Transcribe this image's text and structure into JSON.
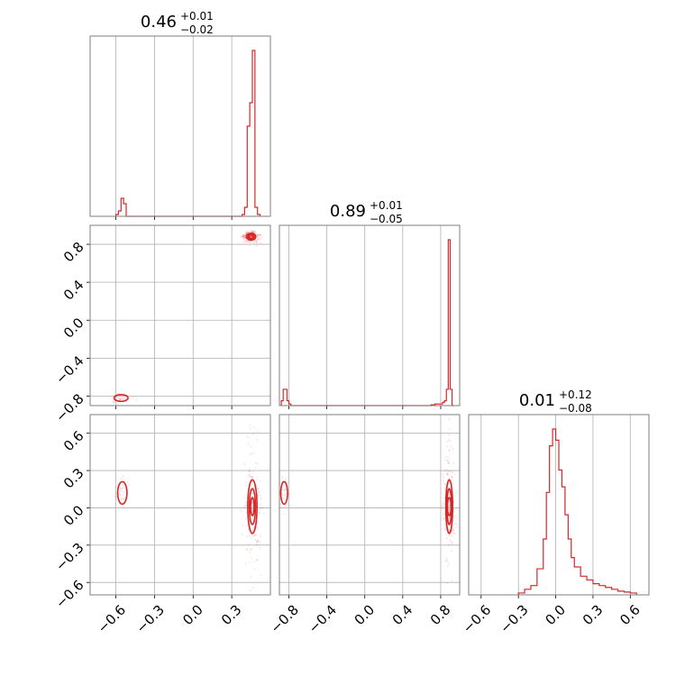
{
  "chart_data": {
    "type": "corner",
    "color": "#d62728",
    "grid": true,
    "parameters": [
      {
        "title": {
          "median": "0.46",
          "plus": "+0.01",
          "minus": "−0.02"
        },
        "range": [
          -0.8,
          0.6
        ],
        "ticks": [
          -0.6,
          -0.3,
          0.0,
          0.3
        ]
      },
      {
        "title": {
          "median": "0.89",
          "plus": "+0.01",
          "minus": "−0.05"
        },
        "range": [
          -0.9,
          1.0
        ],
        "ticks": [
          -0.8,
          -0.4,
          0.0,
          0.4,
          0.8
        ]
      },
      {
        "title": {
          "median": "0.01",
          "plus": "+0.12",
          "minus": "−0.08"
        },
        "range": [
          -0.7,
          0.75
        ],
        "ticks": [
          -0.6,
          -0.3,
          0.0,
          0.3,
          0.6
        ]
      }
    ],
    "tick_labels": {
      "p0": [
        "−0.6",
        "−0.3",
        "0.0",
        "0.3"
      ],
      "p1": [
        "−0.8",
        "−0.4",
        "0.0",
        "0.4",
        "0.8"
      ],
      "p2": [
        "−0.6",
        "−0.3",
        "0.0",
        "0.3",
        "0.6"
      ]
    },
    "histograms": [
      {
        "param": 0,
        "bins": [
          -0.6,
          -0.58,
          -0.56,
          -0.54,
          -0.52,
          0.38,
          0.4,
          0.42,
          0.44,
          0.46,
          0.48,
          0.5
        ],
        "counts": [
          1,
          3,
          10,
          7,
          0,
          1,
          5,
          50,
          63,
          92,
          5,
          1
        ]
      },
      {
        "param": 1,
        "bins": [
          -0.88,
          -0.86,
          -0.84,
          -0.82,
          -0.8,
          -0.78,
          0.7,
          0.72,
          0.74,
          0.76,
          0.78,
          0.8,
          0.82,
          0.84,
          0.86,
          0.88,
          0.9,
          0.92
        ],
        "counts": [
          3,
          10,
          10,
          3,
          1,
          0,
          0.5,
          0.5,
          1,
          1,
          1,
          1,
          2,
          3,
          10,
          102,
          10,
          0
        ]
      },
      {
        "param": 2,
        "bins": [
          -0.3,
          -0.25,
          -0.2,
          -0.15,
          -0.1,
          -0.075,
          -0.05,
          -0.025,
          0.0,
          0.025,
          0.05,
          0.075,
          0.1,
          0.125,
          0.15,
          0.2,
          0.25,
          0.3,
          0.35,
          0.4,
          0.45,
          0.5,
          0.55,
          0.6,
          0.65
        ],
        "counts": [
          1,
          3,
          5,
          14,
          30,
          55,
          80,
          89,
          83,
          67,
          58,
          43,
          30,
          20,
          15,
          10,
          8,
          6,
          5,
          4,
          3,
          2,
          1.5,
          1
        ]
      }
    ],
    "pairs": [
      {
        "x": 0,
        "y": 1,
        "modes": [
          {
            "cx": 0.45,
            "cy": 0.88,
            "sx": 0.02,
            "sy": 0.02,
            "weight": 0.88
          },
          {
            "cx": -0.56,
            "cy": -0.82,
            "sx": 0.03,
            "sy": 0.02,
            "weight": 0.12
          }
        ]
      },
      {
        "x": 0,
        "y": 2,
        "modes": [
          {
            "cx": 0.46,
            "cy": 0.01,
            "sx": 0.02,
            "sy": 0.12,
            "weight": 0.88
          },
          {
            "cx": -0.55,
            "cy": 0.12,
            "sx": 0.02,
            "sy": 0.05,
            "weight": 0.12
          }
        ]
      },
      {
        "x": 1,
        "y": 2,
        "modes": [
          {
            "cx": 0.89,
            "cy": 0.01,
            "sx": 0.02,
            "sy": 0.12,
            "weight": 0.88
          },
          {
            "cx": -0.85,
            "cy": 0.12,
            "sx": 0.02,
            "sy": 0.05,
            "weight": 0.12
          }
        ]
      }
    ]
  }
}
